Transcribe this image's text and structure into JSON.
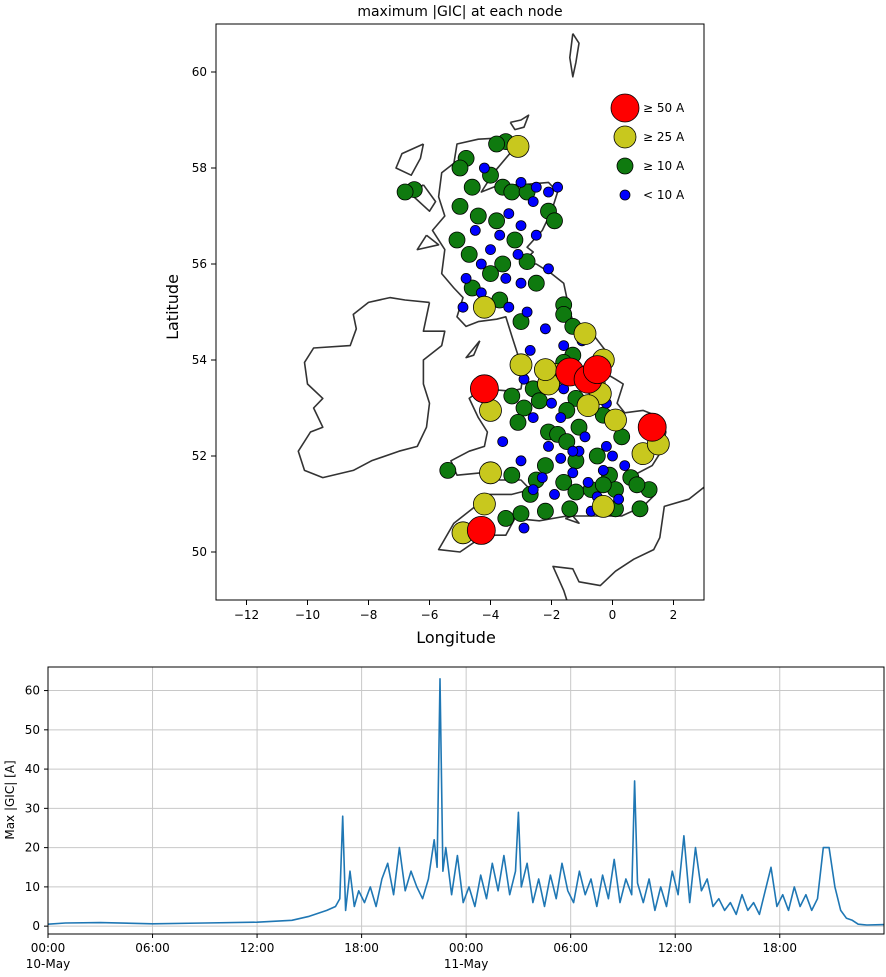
{
  "chart_data": [
    {
      "type": "scatter",
      "title": "maximum |GIC| at each node",
      "xlabel": "Longitude",
      "ylabel": "Latitude",
      "xlim": [
        -13,
        3
      ],
      "ylim": [
        49,
        61
      ],
      "xticks": [
        -12,
        -10,
        -8,
        -6,
        -4,
        -2,
        0,
        2
      ],
      "xtick_labels": [
        "−12",
        "−10",
        "−8",
        "−6",
        "−4",
        "−2",
        "0",
        "2"
      ],
      "yticks": [
        50,
        52,
        54,
        56,
        58,
        60
      ],
      "ytick_labels": [
        "50",
        "52",
        "54",
        "56",
        "58",
        "60"
      ],
      "legend": [
        {
          "label": "≥  50 A",
          "color": "#ff0000",
          "class": "gte50"
        },
        {
          "label": "≥  25 A",
          "color": "#c8c81e",
          "class": "gte25"
        },
        {
          "label": "≥  10 A",
          "color": "#0f7a0f",
          "class": "gte10"
        },
        {
          "label": "<  10 A",
          "color": "#0000ff",
          "class": "lt10"
        }
      ],
      "legend_position": "top-right",
      "series": [
        {
          "name": "≥  50 A",
          "class": "gte50",
          "points": [
            [
              -4.2,
              53.4
            ],
            [
              -1.4,
              53.75
            ],
            [
              -0.8,
              53.6
            ],
            [
              -0.5,
              53.8
            ],
            [
              1.3,
              52.6
            ],
            [
              -4.3,
              50.45
            ]
          ]
        },
        {
          "name": "≥  25 A",
          "class": "gte25",
          "points": [
            [
              -3.1,
              58.45
            ],
            [
              -4.2,
              55.1
            ],
            [
              -0.9,
              54.55
            ],
            [
              -3.0,
              53.9
            ],
            [
              -1.9,
              53.7
            ],
            [
              -2.1,
              53.5
            ],
            [
              -0.6,
              53.5
            ],
            [
              -0.4,
              53.3
            ],
            [
              -0.8,
              53.05
            ],
            [
              -4.0,
              52.95
            ],
            [
              0.1,
              52.75
            ],
            [
              1.0,
              52.05
            ],
            [
              1.5,
              52.25
            ],
            [
              -4.0,
              51.65
            ],
            [
              -4.2,
              51.0
            ],
            [
              -0.3,
              50.95
            ],
            [
              -4.9,
              50.4
            ],
            [
              -2.2,
              53.8
            ],
            [
              -0.3,
              54.0
            ]
          ]
        },
        {
          "name": "≥  10 A",
          "class": "gte10",
          "points": [
            [
              -3.5,
              58.55
            ],
            [
              -3.8,
              58.5
            ],
            [
              -4.8,
              58.2
            ],
            [
              -6.5,
              57.55
            ],
            [
              -6.8,
              57.5
            ],
            [
              -5.0,
              58.0
            ],
            [
              -4.0,
              57.85
            ],
            [
              -4.6,
              57.6
            ],
            [
              -3.6,
              57.6
            ],
            [
              -3.3,
              57.5
            ],
            [
              -2.8,
              57.5
            ],
            [
              -5.0,
              57.2
            ],
            [
              -4.4,
              57.0
            ],
            [
              -3.8,
              56.9
            ],
            [
              -2.1,
              57.1
            ],
            [
              -1.9,
              56.9
            ],
            [
              -5.1,
              56.5
            ],
            [
              -3.2,
              56.5
            ],
            [
              -4.7,
              56.2
            ],
            [
              -2.8,
              56.05
            ],
            [
              -3.6,
              56.0
            ],
            [
              -4.0,
              55.8
            ],
            [
              -2.5,
              55.6
            ],
            [
              -4.6,
              55.5
            ],
            [
              -3.7,
              55.25
            ],
            [
              -1.6,
              55.15
            ],
            [
              -1.6,
              54.95
            ],
            [
              -1.3,
              54.7
            ],
            [
              -3.0,
              54.8
            ],
            [
              -1.3,
              54.1
            ],
            [
              -1.6,
              53.95
            ],
            [
              -2.6,
              53.4
            ],
            [
              -3.3,
              53.25
            ],
            [
              -2.4,
              53.15
            ],
            [
              -2.9,
              53.0
            ],
            [
              -1.2,
              53.2
            ],
            [
              -1.5,
              52.95
            ],
            [
              -3.1,
              52.7
            ],
            [
              -2.1,
              52.5
            ],
            [
              -1.8,
              52.45
            ],
            [
              -1.1,
              52.6
            ],
            [
              -1.5,
              52.3
            ],
            [
              -0.3,
              52.85
            ],
            [
              0.3,
              52.4
            ],
            [
              -0.5,
              52.0
            ],
            [
              -1.2,
              51.9
            ],
            [
              -0.1,
              51.6
            ],
            [
              0.6,
              51.55
            ],
            [
              1.2,
              51.3
            ],
            [
              -1.6,
              51.45
            ],
            [
              -3.3,
              51.6
            ],
            [
              -5.4,
              51.7
            ],
            [
              -2.7,
              51.2
            ],
            [
              -1.2,
              51.25
            ],
            [
              -0.7,
              51.3
            ],
            [
              0.1,
              51.3
            ],
            [
              0.8,
              51.4
            ],
            [
              -2.2,
              50.85
            ],
            [
              -1.4,
              50.9
            ],
            [
              -0.3,
              51.4
            ],
            [
              -3.5,
              50.7
            ],
            [
              -2.5,
              51.5
            ],
            [
              -2.2,
              51.8
            ],
            [
              0.1,
              50.9
            ],
            [
              0.9,
              50.9
            ],
            [
              -3.0,
              50.8
            ]
          ]
        },
        {
          "name": "<  10 A",
          "class": "lt10",
          "points": [
            [
              -4.2,
              58.0
            ],
            [
              -3.0,
              57.7
            ],
            [
              -2.5,
              57.6
            ],
            [
              -2.1,
              57.5
            ],
            [
              -1.8,
              57.6
            ],
            [
              -2.6,
              57.3
            ],
            [
              -3.4,
              57.05
            ],
            [
              -3.0,
              56.8
            ],
            [
              -2.5,
              56.6
            ],
            [
              -3.7,
              56.6
            ],
            [
              -4.0,
              56.3
            ],
            [
              -4.3,
              56.0
            ],
            [
              -3.1,
              56.2
            ],
            [
              -3.5,
              55.7
            ],
            [
              -4.3,
              55.4
            ],
            [
              -3.0,
              55.6
            ],
            [
              -2.1,
              55.9
            ],
            [
              -4.9,
              55.1
            ],
            [
              -3.4,
              55.1
            ],
            [
              -2.8,
              55.0
            ],
            [
              -2.2,
              54.65
            ],
            [
              -1.0,
              54.4
            ],
            [
              -0.5,
              53.9
            ],
            [
              -1.6,
              53.4
            ],
            [
              -2.0,
              53.1
            ],
            [
              -2.6,
              52.8
            ],
            [
              -1.7,
              52.8
            ],
            [
              -0.9,
              52.4
            ],
            [
              -1.1,
              52.1
            ],
            [
              -0.2,
              52.2
            ],
            [
              -2.1,
              52.2
            ],
            [
              -1.7,
              51.95
            ],
            [
              -0.3,
              51.7
            ],
            [
              -0.8,
              51.45
            ],
            [
              -1.9,
              51.2
            ],
            [
              -0.5,
              51.15
            ],
            [
              -2.6,
              51.3
            ],
            [
              -3.0,
              51.9
            ],
            [
              -1.3,
              51.65
            ],
            [
              0.4,
              51.8
            ],
            [
              0.0,
              52.0
            ],
            [
              -0.7,
              50.85
            ],
            [
              -2.9,
              50.5
            ],
            [
              -4.8,
              55.7
            ],
            [
              -4.5,
              56.7
            ],
            [
              -2.7,
              54.2
            ],
            [
              -1.6,
              54.3
            ],
            [
              -2.9,
              53.6
            ],
            [
              -0.2,
              53.1
            ],
            [
              -1.3,
              52.1
            ],
            [
              -2.3,
              51.55
            ],
            [
              0.2,
              51.1
            ],
            [
              -3.6,
              52.3
            ]
          ]
        }
      ]
    },
    {
      "type": "line",
      "title": "",
      "xlabel": "",
      "ylabel": "Max |GIC| [A]",
      "xlim": [
        "2024-05-10T00:00",
        "2024-05-11T23:59"
      ],
      "ylim": [
        -2,
        66
      ],
      "yticks": [
        0,
        10,
        20,
        30,
        40,
        50,
        60
      ],
      "xtick_labels": [
        {
          "time": "2024-05-10T00:00",
          "label": "00:00",
          "sublabel": "10-May"
        },
        {
          "time": "2024-05-10T06:00",
          "label": "06:00",
          "sublabel": ""
        },
        {
          "time": "2024-05-10T12:00",
          "label": "12:00",
          "sublabel": ""
        },
        {
          "time": "2024-05-10T18:00",
          "label": "18:00",
          "sublabel": ""
        },
        {
          "time": "2024-05-11T00:00",
          "label": "00:00",
          "sublabel": "11-May"
        },
        {
          "time": "2024-05-11T06:00",
          "label": "06:00",
          "sublabel": ""
        },
        {
          "time": "2024-05-11T12:00",
          "label": "12:00",
          "sublabel": ""
        },
        {
          "time": "2024-05-11T18:00",
          "label": "18:00",
          "sublabel": ""
        }
      ],
      "grid": true,
      "line_color": "#1f77b4",
      "series": [
        {
          "x": [
            "2024-05-10T00:00",
            "2024-05-10T01:00",
            "2024-05-10T03:00",
            "2024-05-10T06:00",
            "2024-05-10T09:00",
            "2024-05-10T12:00",
            "2024-05-10T14:00",
            "2024-05-10T15:00",
            "2024-05-10T16:00",
            "2024-05-10T16:30",
            "2024-05-10T16:45",
            "2024-05-10T16:55",
            "2024-05-10T17:05",
            "2024-05-10T17:20",
            "2024-05-10T17:35",
            "2024-05-10T17:50",
            "2024-05-10T18:10",
            "2024-05-10T18:30",
            "2024-05-10T18:50",
            "2024-05-10T19:10",
            "2024-05-10T19:30",
            "2024-05-10T19:50",
            "2024-05-10T20:10",
            "2024-05-10T20:30",
            "2024-05-10T20:50",
            "2024-05-10T21:10",
            "2024-05-10T21:30",
            "2024-05-10T21:50",
            "2024-05-10T22:10",
            "2024-05-10T22:20",
            "2024-05-10T22:30",
            "2024-05-10T22:40",
            "2024-05-10T22:50",
            "2024-05-10T23:10",
            "2024-05-10T23:30",
            "2024-05-10T23:50",
            "2024-05-11T00:10",
            "2024-05-11T00:30",
            "2024-05-11T00:50",
            "2024-05-11T01:10",
            "2024-05-11T01:30",
            "2024-05-11T01:50",
            "2024-05-11T02:10",
            "2024-05-11T02:30",
            "2024-05-11T02:50",
            "2024-05-11T03:00",
            "2024-05-11T03:10",
            "2024-05-11T03:30",
            "2024-05-11T03:50",
            "2024-05-11T04:10",
            "2024-05-11T04:30",
            "2024-05-11T04:50",
            "2024-05-11T05:10",
            "2024-05-11T05:30",
            "2024-05-11T05:50",
            "2024-05-11T06:10",
            "2024-05-11T06:30",
            "2024-05-11T06:50",
            "2024-05-11T07:10",
            "2024-05-11T07:30",
            "2024-05-11T07:50",
            "2024-05-11T08:10",
            "2024-05-11T08:30",
            "2024-05-11T08:50",
            "2024-05-11T09:10",
            "2024-05-11T09:30",
            "2024-05-11T09:40",
            "2024-05-11T09:50",
            "2024-05-11T10:10",
            "2024-05-11T10:30",
            "2024-05-11T10:50",
            "2024-05-11T11:10",
            "2024-05-11T11:30",
            "2024-05-11T11:50",
            "2024-05-11T12:10",
            "2024-05-11T12:30",
            "2024-05-11T12:50",
            "2024-05-11T13:10",
            "2024-05-11T13:30",
            "2024-05-11T13:50",
            "2024-05-11T14:10",
            "2024-05-11T14:30",
            "2024-05-11T14:50",
            "2024-05-11T15:10",
            "2024-05-11T15:30",
            "2024-05-11T15:50",
            "2024-05-11T16:10",
            "2024-05-11T16:30",
            "2024-05-11T16:50",
            "2024-05-11T17:10",
            "2024-05-11T17:30",
            "2024-05-11T17:50",
            "2024-05-11T18:10",
            "2024-05-11T18:30",
            "2024-05-11T18:50",
            "2024-05-11T19:10",
            "2024-05-11T19:30",
            "2024-05-11T19:50",
            "2024-05-11T20:10",
            "2024-05-11T20:30",
            "2024-05-11T20:50",
            "2024-05-11T21:10",
            "2024-05-11T21:30",
            "2024-05-11T21:50",
            "2024-05-11T22:10",
            "2024-05-11T22:30",
            "2024-05-11T23:00",
            "2024-05-11T23:59"
          ],
          "values": [
            0.5,
            0.8,
            0.9,
            0.6,
            0.8,
            1.0,
            1.5,
            2.5,
            4.0,
            5.0,
            7.0,
            28,
            4.0,
            14,
            5.0,
            9.0,
            6.0,
            10,
            5.0,
            12,
            16,
            8.0,
            20,
            9.0,
            14,
            10,
            7.0,
            12,
            22,
            15,
            63,
            14,
            20,
            8.0,
            18,
            6.0,
            10,
            5.0,
            13,
            7.0,
            16,
            9.0,
            18,
            8.0,
            14,
            29,
            10,
            16,
            6.0,
            12,
            5.0,
            13,
            7.0,
            16,
            9.0,
            6.0,
            14,
            8.0,
            12,
            5.0,
            13,
            7.0,
            17,
            6.0,
            12,
            8.0,
            37,
            11,
            6.0,
            12,
            4.0,
            10,
            5.0,
            14,
            8.0,
            23,
            6.0,
            20,
            9.0,
            12,
            5.0,
            7.0,
            4.0,
            6.0,
            3.0,
            8.0,
            4.0,
            6.0,
            3.0,
            9.0,
            15,
            5.0,
            8.0,
            4.0,
            10,
            5.0,
            8.0,
            4.0,
            7.0,
            20,
            20,
            10,
            4.0,
            2.0,
            1.5,
            0.5,
            0.3,
            0.4
          ]
        }
      ]
    }
  ]
}
